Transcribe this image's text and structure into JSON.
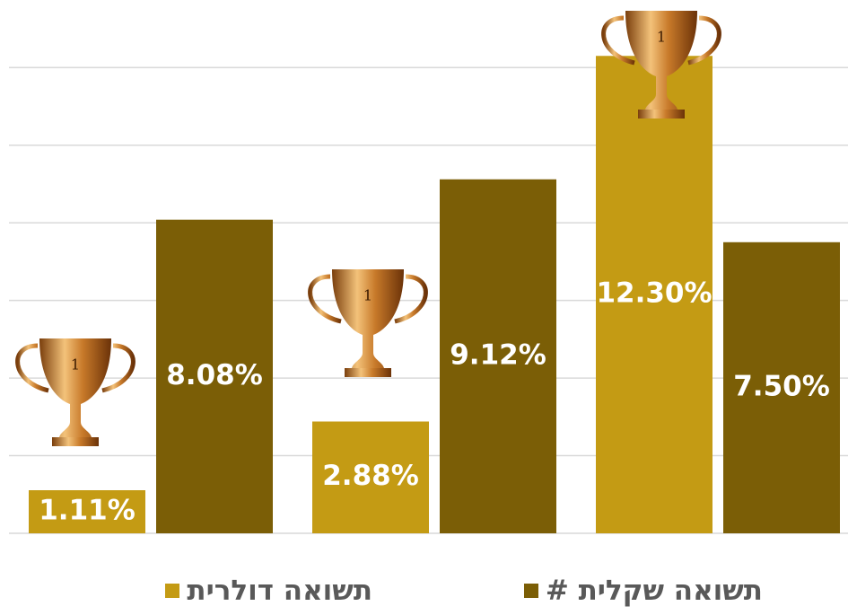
{
  "chart_data": {
    "type": "bar",
    "categories": [
      null,
      null,
      null
    ],
    "series": [
      {
        "name": "תשואה דולרית",
        "color": "#c49b14",
        "values": [
          1.11,
          2.88,
          12.3
        ],
        "value_labels": [
          "1.11%",
          "2.88%",
          "12.30%"
        ]
      },
      {
        "name": "תשואה שקלית #",
        "color": "#7b5e06",
        "values": [
          8.08,
          9.12,
          7.5
        ],
        "value_labels": [
          "8.08%",
          "9.12%",
          "7.50%"
        ]
      }
    ],
    "ylim": [
      0,
      13
    ],
    "yticks": [
      0,
      2,
      4,
      6,
      8,
      10,
      12
    ],
    "grid": true,
    "legend": "bottom"
  }
}
